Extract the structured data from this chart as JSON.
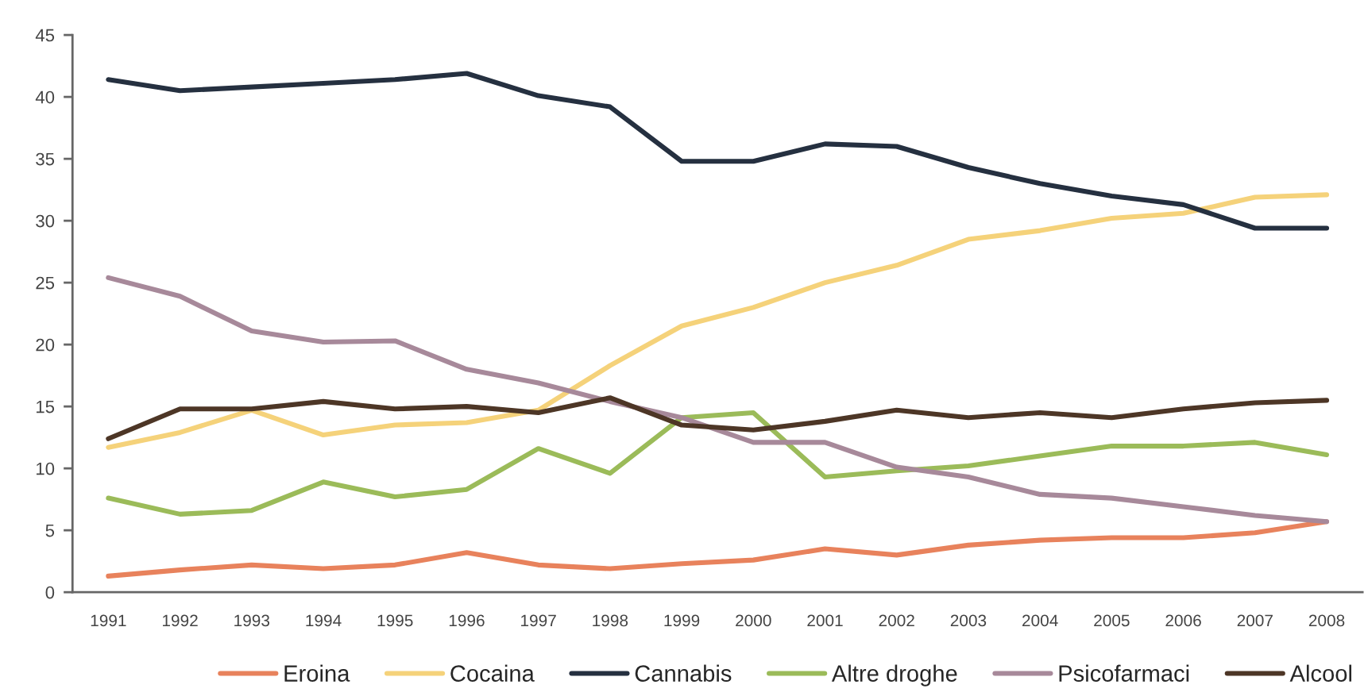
{
  "chart_data": {
    "type": "line",
    "categories": [
      "1991",
      "1992",
      "1993",
      "1994",
      "1995",
      "1996",
      "1997",
      "1998",
      "1999",
      "2000",
      "2001",
      "2002",
      "2003",
      "2004",
      "2005",
      "2006",
      "2007",
      "2008"
    ],
    "series": [
      {
        "name": "Eroina",
        "color": "#e8825c",
        "values": [
          1.3,
          1.8,
          2.2,
          1.9,
          2.2,
          3.2,
          2.2,
          1.9,
          2.3,
          2.6,
          3.5,
          3.0,
          3.8,
          4.2,
          4.4,
          4.4,
          4.8,
          5.7
        ]
      },
      {
        "name": "Cocaina",
        "color": "#f5d27a",
        "values": [
          11.7,
          12.9,
          14.7,
          12.7,
          13.5,
          13.7,
          14.7,
          18.3,
          21.5,
          23.0,
          25.0,
          26.4,
          28.5,
          29.2,
          30.2,
          30.6,
          31.9,
          32.1
        ]
      },
      {
        "name": "Cannabis",
        "color": "#253040",
        "values": [
          41.4,
          40.5,
          40.8,
          41.1,
          41.4,
          41.9,
          40.1,
          39.2,
          34.8,
          34.8,
          36.2,
          36.0,
          34.3,
          33.0,
          32.0,
          31.3,
          29.4,
          29.4
        ]
      },
      {
        "name": "Altre droghe",
        "color": "#9bbb59",
        "values": [
          7.6,
          6.3,
          6.6,
          8.9,
          7.7,
          8.3,
          11.6,
          9.6,
          14.1,
          14.5,
          9.3,
          9.8,
          10.2,
          11.0,
          11.8,
          11.8,
          12.1,
          11.1
        ]
      },
      {
        "name": "Psicofarmaci",
        "color": "#a7899a",
        "values": [
          25.4,
          23.9,
          21.1,
          20.2,
          20.3,
          18.0,
          16.9,
          15.4,
          14.1,
          12.1,
          12.1,
          10.1,
          9.3,
          7.9,
          7.6,
          6.9,
          6.2,
          5.7
        ]
      },
      {
        "name": "Alcool",
        "color": "#4d3626",
        "values": [
          12.4,
          14.8,
          14.8,
          15.4,
          14.8,
          15.0,
          14.5,
          15.7,
          13.5,
          13.1,
          13.8,
          14.7,
          14.1,
          14.5,
          14.1,
          14.8,
          15.3,
          15.5
        ]
      }
    ],
    "ylim": [
      0,
      45
    ],
    "yticks": [
      0,
      5,
      10,
      15,
      20,
      25,
      30,
      35,
      40,
      45
    ],
    "legend": "bottom"
  }
}
